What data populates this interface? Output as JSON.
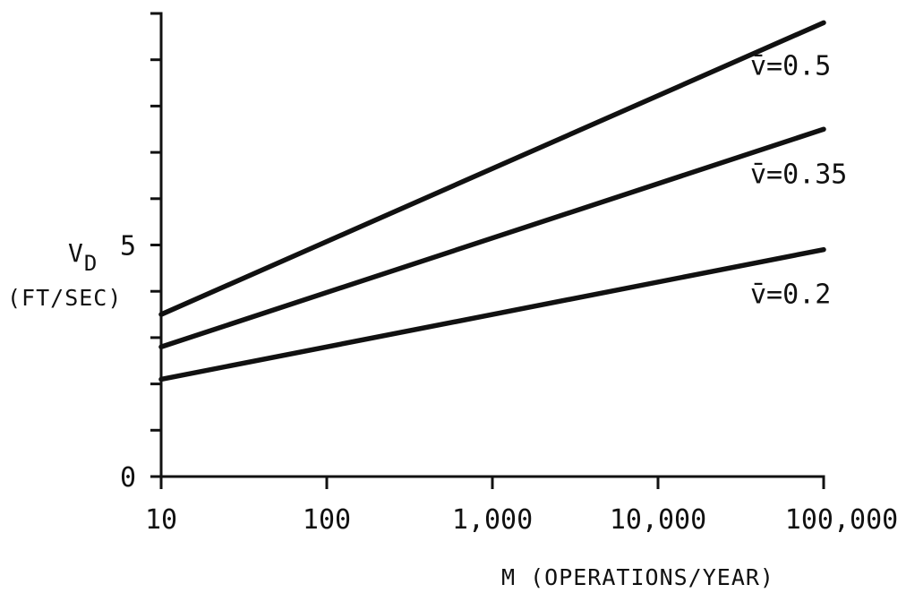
{
  "chart_data": {
    "type": "line",
    "x_scale": "log",
    "xlim": [
      10,
      100000
    ],
    "ylim": [
      0,
      10
    ],
    "x_ticks": [
      10,
      100,
      1000,
      10000,
      100000
    ],
    "x_tick_labels": [
      "10",
      "100",
      "1,000",
      "10,000",
      "100,000"
    ],
    "y_ticks": [
      0,
      1,
      2,
      3,
      4,
      5,
      6,
      7,
      8,
      9,
      10
    ],
    "y_tick_labels": {
      "0": "0",
      "5": "5"
    },
    "xlabel": "M (OPERATIONS/YEAR)",
    "ylabel_main": "V",
    "ylabel_sub": "D",
    "ylabel_units": "(FT/SEC)",
    "grid": false,
    "legend": "inline-right",
    "series": [
      {
        "name": "v̄=0.5",
        "x": [
          10,
          100000
        ],
        "y": [
          3.5,
          9.8
        ]
      },
      {
        "name": "v̄=0.35",
        "x": [
          10,
          100000
        ],
        "y": [
          2.8,
          7.5
        ]
      },
      {
        "name": "v̄=0.2",
        "x": [
          10,
          100000
        ],
        "y": [
          2.1,
          4.9
        ]
      }
    ]
  }
}
